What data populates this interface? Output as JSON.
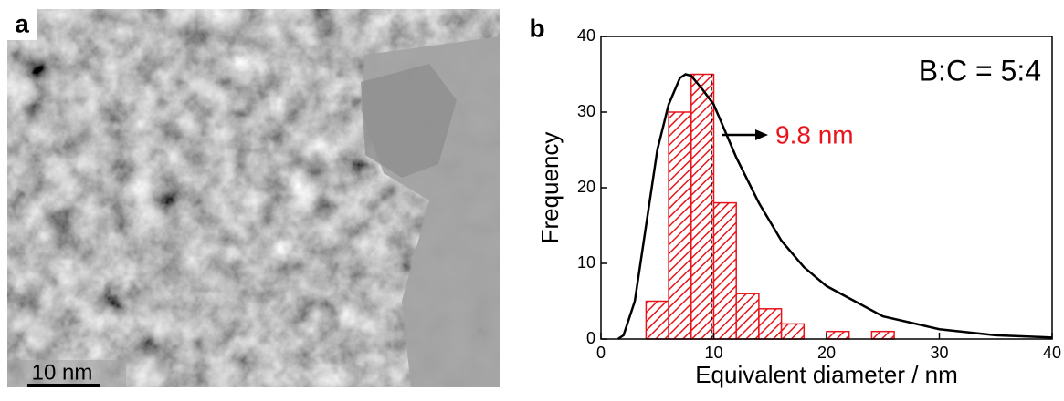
{
  "panel_a": {
    "label": "a",
    "scale_bar": "10 nm"
  },
  "panel_b": {
    "label": "b"
  },
  "chart_data": {
    "type": "histogram",
    "xlabel": "Equivalent diameter / nm",
    "ylabel": "Frequency",
    "bins": [
      4,
      6,
      8,
      10,
      12,
      14,
      16,
      18,
      20,
      22,
      24,
      26
    ],
    "values": [
      5,
      30,
      35,
      18,
      6,
      4,
      2,
      0,
      1,
      0,
      1
    ],
    "color": "#e8141b",
    "xlim": [
      0,
      40
    ],
    "ylim": [
      0,
      40
    ],
    "xticks": [
      0,
      10,
      20,
      30,
      40
    ],
    "yticks": [
      0,
      10,
      20,
      30,
      40
    ],
    "fit": {
      "color": "#000000",
      "x": [
        1.5,
        2,
        3,
        4,
        5,
        6,
        7,
        7.5,
        8,
        9,
        10,
        12,
        14,
        16,
        18,
        20,
        25,
        30,
        35,
        40
      ],
      "values": [
        0,
        0.5,
        5,
        15,
        25,
        31,
        34.5,
        35,
        34.8,
        33,
        31,
        24,
        18,
        13,
        9.5,
        7,
        3,
        1.3,
        0.5,
        0.2
      ]
    },
    "mean_line": 9.8,
    "mean_label": "9.8 nm",
    "annotation": "B:C = 5:4"
  }
}
